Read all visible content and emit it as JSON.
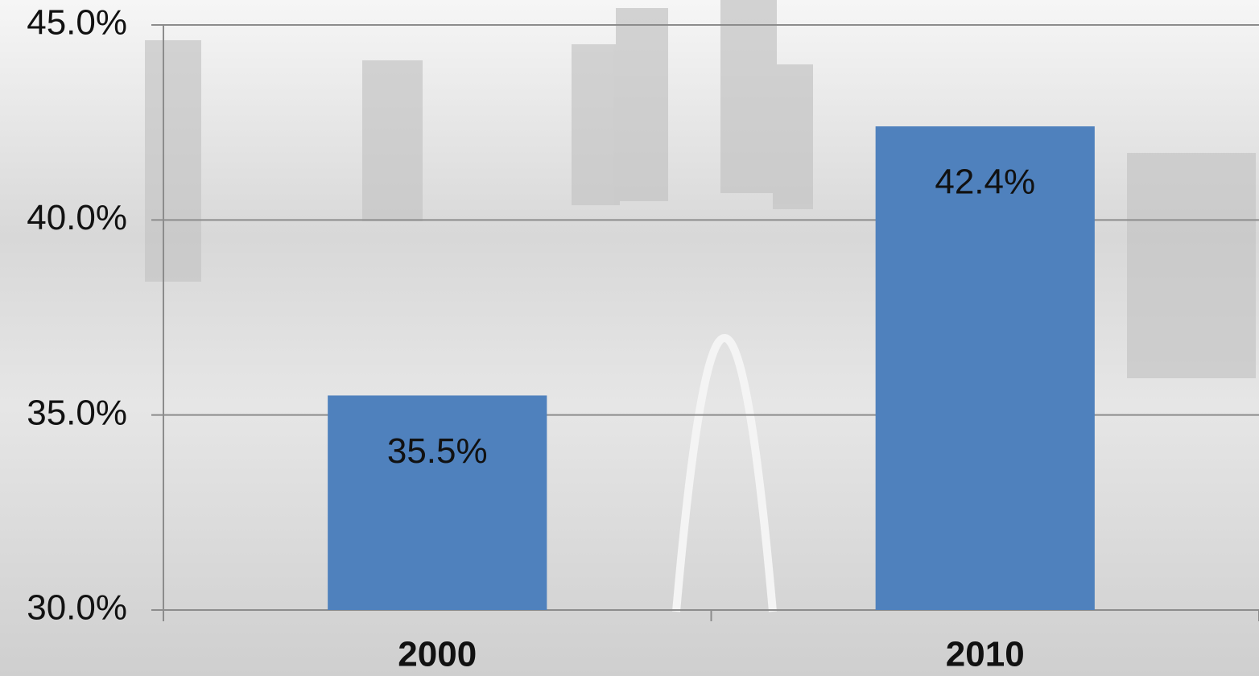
{
  "chart_data": {
    "type": "bar",
    "categories": [
      "2000",
      "2010"
    ],
    "values": [
      35.5,
      42.4
    ],
    "value_labels": [
      "35.5%",
      "42.4%"
    ],
    "color": "#4f81bd",
    "ylim": [
      30,
      45
    ],
    "yticks": [
      {
        "value": 30,
        "label": "30.0%"
      },
      {
        "value": 35,
        "label": "35.0%"
      },
      {
        "value": 40,
        "label": "40.0%"
      },
      {
        "value": 45,
        "label": "45.0%"
      }
    ],
    "grid": true
  }
}
